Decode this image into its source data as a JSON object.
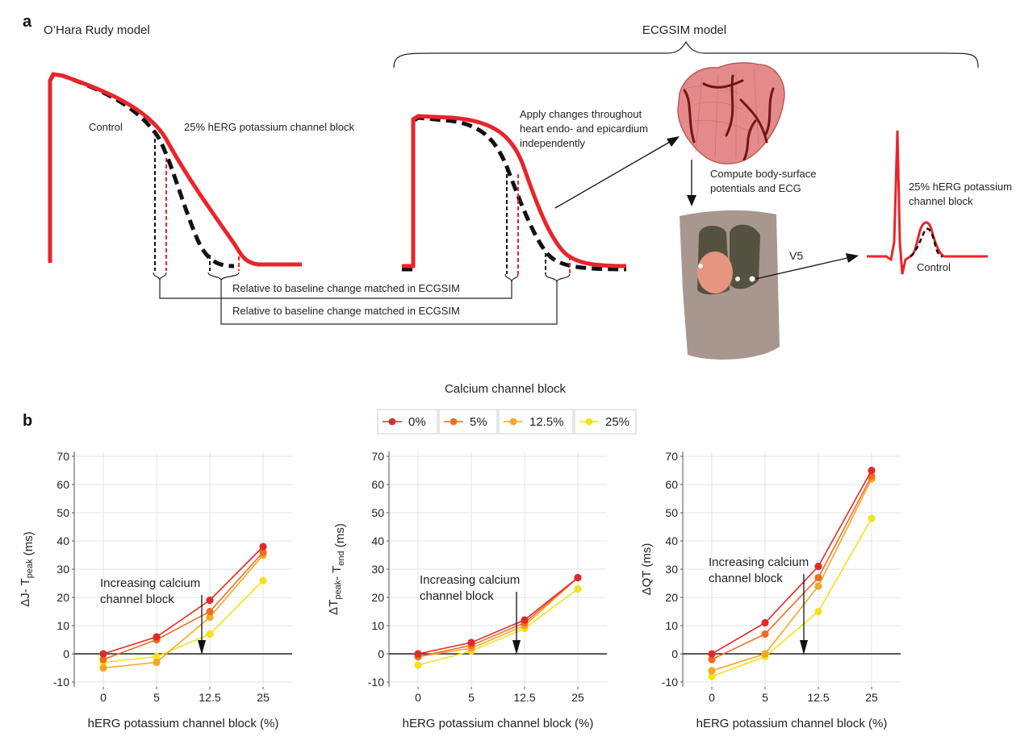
{
  "panel_a": {
    "label": "a",
    "ohara_title": "O’Hara Rudy model",
    "ecgsim_title": "ECGSIM model",
    "control_label": "Control",
    "block_label": "25% hERG potassium channel block",
    "apply_changes": [
      "Apply changes throughout",
      "heart endo- and epicardium",
      "independently"
    ],
    "compute": [
      "Compute body-surface",
      "potentials and ECG"
    ],
    "lead": "V5",
    "ecg_block_label": [
      "25% hERG potassium",
      "channel block"
    ],
    "ecg_control_label": "Control",
    "relative_note_1": "Relative to baseline change matched in ECGSIM",
    "relative_note_2": "Relative to baseline change matched in ECGSIM"
  },
  "panel_b": {
    "label": "b",
    "legend_title": "Calcium channel block"
  },
  "colors": {
    "block_red": "#e8252b",
    "control_black": "#111111",
    "series": [
      "#e22a2a",
      "#ef6d22",
      "#f5a623",
      "#f5e11b"
    ]
  },
  "chart_data": [
    {
      "type": "line",
      "ylabel": "ΔJ- T_peak (ms)",
      "xlabel": "hERG potassium channel block  (%)",
      "categories": [
        "0",
        "5",
        "12.5",
        "25"
      ],
      "ylim": [
        -10,
        70
      ],
      "yticks": [
        -10,
        0,
        10,
        20,
        30,
        40,
        50,
        60,
        70
      ],
      "grid": true,
      "legend_position": "top",
      "annotation": [
        "Increasing calcium",
        "channel block"
      ],
      "series": [
        {
          "name": "0%",
          "values": [
            0,
            6,
            19,
            38
          ]
        },
        {
          "name": "5%",
          "values": [
            -2,
            5,
            15,
            36
          ]
        },
        {
          "name": "12.5%",
          "values": [
            -5,
            -3,
            13,
            35
          ]
        },
        {
          "name": "25%",
          "values": [
            -3,
            -1,
            7,
            26
          ]
        }
      ]
    },
    {
      "type": "line",
      "ylabel": "ΔT_peak- T_end (ms)",
      "xlabel": "hERG potassium channel block  (%)",
      "categories": [
        "0",
        "5",
        "12.5",
        "25"
      ],
      "ylim": [
        -10,
        70
      ],
      "yticks": [
        -10,
        0,
        10,
        20,
        30,
        40,
        50,
        60,
        70
      ],
      "grid": true,
      "annotation": [
        "Increasing calcium",
        "channel block"
      ],
      "series": [
        {
          "name": "0%",
          "values": [
            0,
            4,
            12,
            27
          ]
        },
        {
          "name": "5%",
          "values": [
            -1,
            3,
            11,
            27
          ]
        },
        {
          "name": "12.5%",
          "values": [
            -1,
            2,
            10,
            27
          ]
        },
        {
          "name": "25%",
          "values": [
            -4,
            1,
            9,
            23
          ]
        }
      ]
    },
    {
      "type": "line",
      "ylabel": "ΔQT (ms)",
      "xlabel": "hERG potassium channel block  (%)",
      "categories": [
        "0",
        "5",
        "12.5",
        "25"
      ],
      "ylim": [
        -10,
        70
      ],
      "yticks": [
        -10,
        0,
        10,
        20,
        30,
        40,
        50,
        60,
        70
      ],
      "grid": true,
      "annotation": [
        "Increasing calcium",
        "channel block"
      ],
      "series": [
        {
          "name": "0%",
          "values": [
            0,
            11,
            31,
            65
          ]
        },
        {
          "name": "5%",
          "values": [
            -2,
            7,
            27,
            63
          ]
        },
        {
          "name": "12.5%",
          "values": [
            -6,
            0,
            24,
            62
          ]
        },
        {
          "name": "25%",
          "values": [
            -8,
            -1,
            15,
            48
          ]
        }
      ]
    }
  ]
}
